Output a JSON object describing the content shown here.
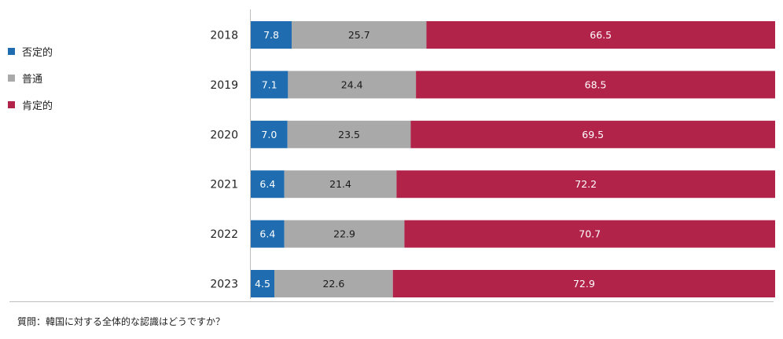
{
  "chart_data": {
    "type": "bar",
    "orientation": "horizontal",
    "stacked": true,
    "categories": [
      "2018",
      "2019",
      "2020",
      "2021",
      "2022",
      "2023"
    ],
    "series": [
      {
        "name": "否定的",
        "color": "#1f6cb0",
        "values": [
          7.8,
          7.1,
          7.0,
          6.4,
          6.4,
          4.5
        ]
      },
      {
        "name": "普通",
        "color": "#a9a9a9",
        "values": [
          25.7,
          24.4,
          23.5,
          21.4,
          22.9,
          22.6
        ]
      },
      {
        "name": "肯定的",
        "color": "#b2234a",
        "values": [
          66.5,
          68.5,
          69.5,
          72.2,
          70.7,
          72.9
        ]
      }
    ],
    "data_labels": true,
    "xlim": [
      0,
      100
    ],
    "grid": false,
    "legend_position": "left"
  },
  "caption": "質問：韓国に対する全体的な認識はどうですか？"
}
